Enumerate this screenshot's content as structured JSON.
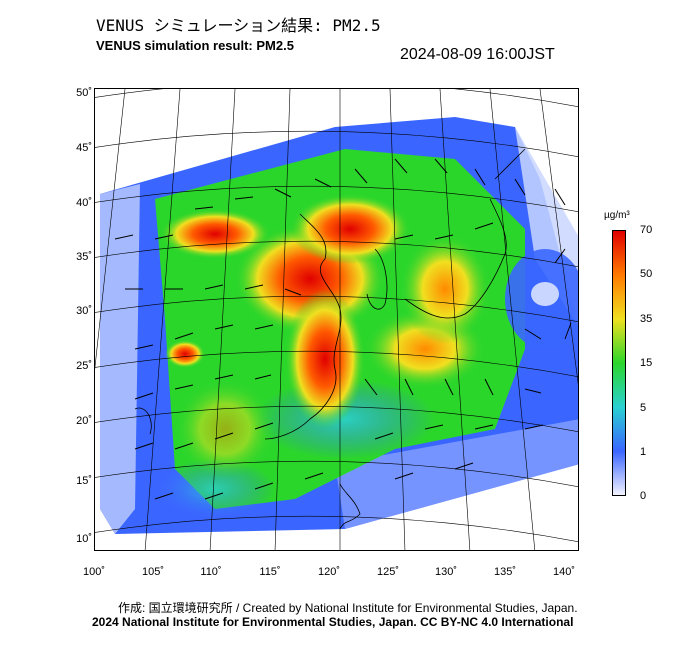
{
  "header": {
    "title_jp": "VENUS シミュレーション結果: PM2.5",
    "title_en": "VENUS simulation result: PM2.5",
    "timestamp": "2024-08-09 16:00JST"
  },
  "map": {
    "lat_labels": [
      "50˚",
      "45˚",
      "40˚",
      "35˚",
      "30˚",
      "25˚",
      "20˚",
      "15˚",
      "10˚"
    ],
    "lon_labels": [
      "100˚",
      "105˚",
      "110˚",
      "115˚",
      "120˚",
      "125˚",
      "130˚",
      "135˚",
      "140˚"
    ]
  },
  "legend": {
    "unit": "µg/m³",
    "ticks": [
      "70",
      "50",
      "35",
      "15",
      "5",
      "1",
      "0"
    ],
    "colors": [
      "#f2f2ff",
      "#3a66ff",
      "#2ad1d1",
      "#2bd62b",
      "#f0e020",
      "#ff7a00",
      "#e00000"
    ]
  },
  "footer": {
    "credit": "作成: 国立環境研究所 / Created by National Institute for Environmental Studies, Japan.",
    "license": "2024 National Institute for Environmental Studies, Japan. CC BY-NC 4.0 International"
  }
}
